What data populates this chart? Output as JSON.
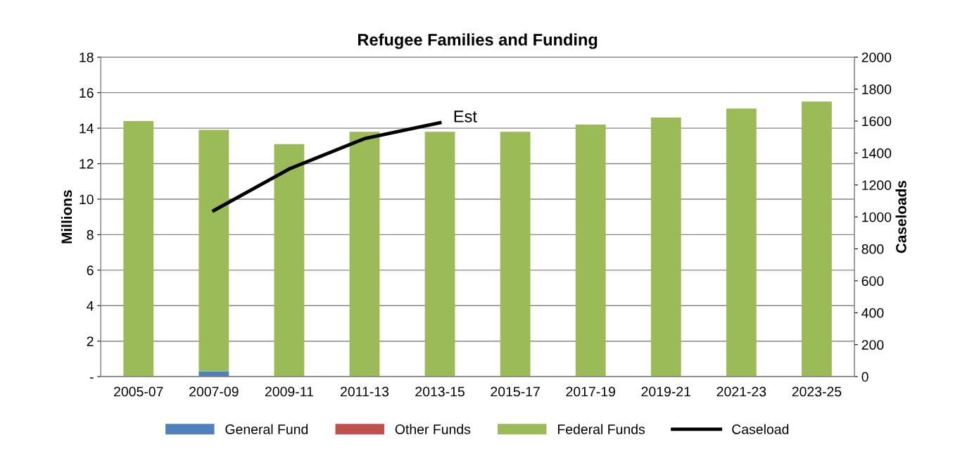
{
  "chart_data": {
    "type": "bar",
    "title": "Refugee Families and Funding",
    "ylabel": "Millions",
    "y2label": "Caseloads",
    "categories": [
      "2005-07",
      "2007-09",
      "2009-11",
      "2011-13",
      "2013-15",
      "2015-17",
      "2017-19",
      "2019-21",
      "2021-23",
      "2023-25"
    ],
    "stacked": true,
    "series": [
      {
        "name": "General Fund",
        "color": "#4f81bd",
        "values": [
          0,
          0.3,
          0,
          0,
          0,
          0,
          0,
          0,
          0,
          0
        ]
      },
      {
        "name": "Other Funds",
        "color": "#c0504d",
        "values": [
          0,
          0,
          0,
          0,
          0,
          0,
          0,
          0,
          0,
          0
        ]
      },
      {
        "name": "Federal Funds",
        "color": "#9bbb59",
        "values": [
          14.4,
          13.6,
          13.1,
          13.8,
          13.8,
          13.8,
          14.2,
          14.6,
          15.1,
          15.5
        ]
      },
      {
        "name": "Caseload",
        "type": "line",
        "axis": "y2",
        "color": "#000000",
        "values": [
          null,
          1040,
          1300,
          1490,
          1590,
          null,
          null,
          null,
          null,
          null
        ]
      }
    ],
    "ylim": [
      0,
      18
    ],
    "yticks": [
      {
        "value": 0,
        "label": "-"
      },
      2,
      4,
      6,
      8,
      10,
      12,
      14,
      16,
      18
    ],
    "y2lim": [
      0,
      2000
    ],
    "y2ticks": [
      0,
      200,
      400,
      600,
      800,
      1000,
      1200,
      1400,
      1600,
      1800,
      2000
    ],
    "annotations": [
      "Est"
    ],
    "grid": "y",
    "legend": "bottom"
  }
}
